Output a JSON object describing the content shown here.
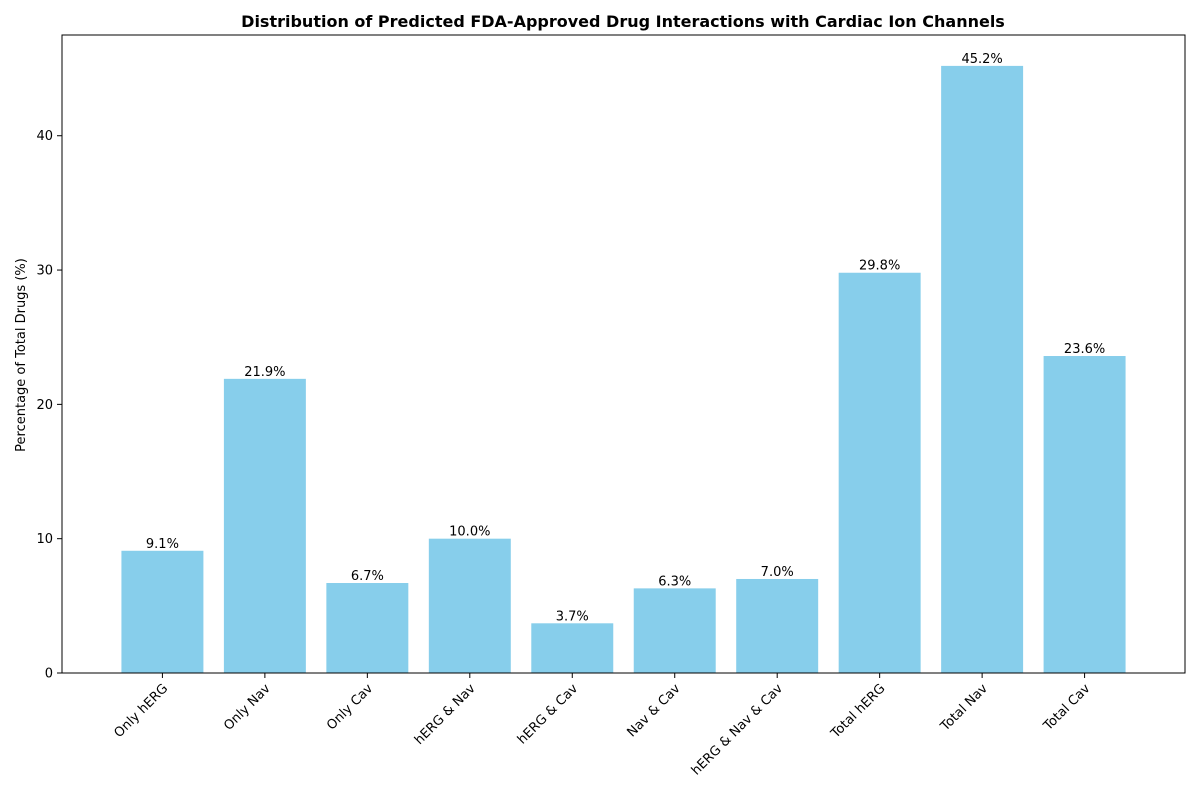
{
  "chart_data": {
    "type": "bar",
    "title": "Distribution of Predicted FDA-Approved Drug Interactions with Cardiac Ion Channels",
    "xlabel": "",
    "ylabel": "Percentage of Total Drugs (%)",
    "categories": [
      "Only hERG",
      "Only Nav",
      "Only Cav",
      "hERG & Nav",
      "hERG & Cav",
      "Nav & Cav",
      "hERG & Nav & Cav",
      "Total hERG",
      "Total Nav",
      "Total Cav"
    ],
    "values": [
      9.1,
      21.9,
      6.7,
      10.0,
      3.7,
      6.3,
      7.0,
      29.8,
      45.2,
      23.6
    ],
    "value_labels": [
      "9.1%",
      "21.9%",
      "6.7%",
      "10.0%",
      "3.7%",
      "6.3%",
      "7.0%",
      "29.8%",
      "45.2%",
      "23.6%"
    ],
    "ylim": [
      0,
      47.5
    ],
    "yticks": [
      0,
      10,
      20,
      30,
      40
    ],
    "bar_color": "#87ceeb",
    "grid": false,
    "xtick_rotation": 45
  }
}
